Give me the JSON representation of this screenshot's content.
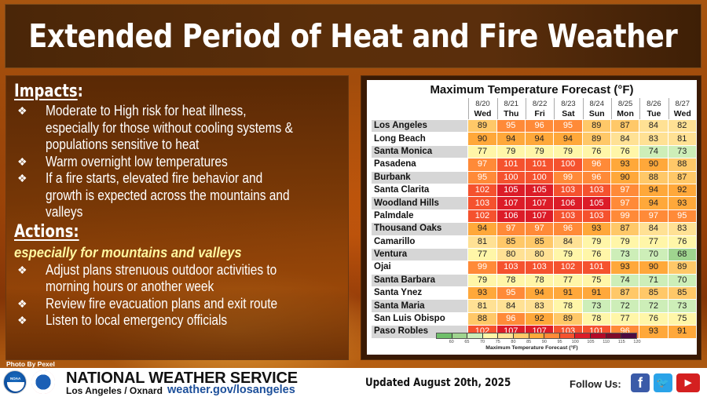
{
  "header": {
    "title": "Extended Period of Heat and Fire Weather"
  },
  "impacts": {
    "heading": "Impacts",
    "heading_suffix": ":",
    "bullet_icon": "❖",
    "items": [
      "Moderate to High risk for heat illness, especially for those without cooling systems & populations sensitive to heat",
      "Warm overnight low temperatures",
      "If a fire starts, elevated fire behavior and growth is expected across the mountains and valleys"
    ]
  },
  "actions": {
    "heading": "Actions:",
    "subheading": "especially for mountains and valleys",
    "bullet_icon": "❖",
    "items": [
      "Adjust plans strenuous outdoor activities to morning hours or another week",
      "Review fire evacuation plans and exit route",
      "Listen to local emergency officials"
    ]
  },
  "photo_credit": "Photo By Pexel",
  "chart_data": {
    "type": "table",
    "title": "Maximum Temperature Forecast (°F)",
    "columns": [
      {
        "date": "8/20",
        "day": "Wed"
      },
      {
        "date": "8/21",
        "day": "Thu"
      },
      {
        "date": "8/22",
        "day": "Fri"
      },
      {
        "date": "8/23",
        "day": "Sat"
      },
      {
        "date": "8/24",
        "day": "Sun"
      },
      {
        "date": "8/25",
        "day": "Mon"
      },
      {
        "date": "8/26",
        "day": "Tue"
      },
      {
        "date": "8/27",
        "day": "Wed"
      }
    ],
    "rows": [
      {
        "city": "Los Angeles",
        "values": [
          89,
          95,
          96,
          95,
          89,
          87,
          84,
          82
        ]
      },
      {
        "city": "Long Beach",
        "values": [
          90,
          94,
          94,
          94,
          89,
          84,
          83,
          81
        ]
      },
      {
        "city": "Santa Monica",
        "values": [
          77,
          79,
          79,
          79,
          76,
          76,
          74,
          73
        ]
      },
      {
        "city": "Pasadena",
        "values": [
          97,
          101,
          101,
          100,
          96,
          93,
          90,
          88
        ]
      },
      {
        "city": "Burbank",
        "values": [
          95,
          100,
          100,
          99,
          96,
          90,
          88,
          87
        ]
      },
      {
        "city": "Santa Clarita",
        "values": [
          102,
          105,
          105,
          103,
          103,
          97,
          94,
          92
        ]
      },
      {
        "city": "Woodland Hills",
        "values": [
          103,
          107,
          107,
          106,
          105,
          97,
          94,
          93
        ]
      },
      {
        "city": "Palmdale",
        "values": [
          102,
          106,
          107,
          103,
          103,
          99,
          97,
          95
        ]
      },
      {
        "city": "Thousand Oaks",
        "values": [
          94,
          97,
          97,
          96,
          93,
          87,
          84,
          83
        ]
      },
      {
        "city": "Camarillo",
        "values": [
          81,
          85,
          85,
          84,
          79,
          79,
          77,
          76
        ]
      },
      {
        "city": "Ventura",
        "values": [
          77,
          80,
          80,
          79,
          76,
          73,
          70,
          68
        ]
      },
      {
        "city": "Ojai",
        "values": [
          99,
          103,
          103,
          102,
          101,
          93,
          90,
          89
        ]
      },
      {
        "city": "Santa Barbara",
        "values": [
          79,
          78,
          78,
          77,
          75,
          74,
          71,
          70
        ]
      },
      {
        "city": "Santa Ynez",
        "values": [
          93,
          95,
          94,
          91,
          91,
          87,
          85,
          85
        ]
      },
      {
        "city": "Santa Maria",
        "values": [
          81,
          84,
          83,
          78,
          73,
          72,
          72,
          73
        ]
      },
      {
        "city": "San Luis Obispo",
        "values": [
          88,
          96,
          92,
          89,
          78,
          77,
          76,
          75
        ]
      },
      {
        "city": "Paso Robles",
        "values": [
          102,
          107,
          107,
          103,
          101,
          96,
          93,
          91
        ]
      }
    ],
    "color_scale": {
      "label": "Maximum Temperature Forecast (°F)",
      "ticks": [
        60,
        65,
        70,
        75,
        80,
        85,
        90,
        95,
        100,
        105,
        110,
        115,
        120
      ],
      "colors": [
        "#6fbf6a",
        "#9fd48f",
        "#cdeeb8",
        "#fff6a8",
        "#ffe194",
        "#ffc868",
        "#ffa83a",
        "#ff8a38",
        "#f5522e",
        "#dc1c28",
        "#b40a28",
        "#7e0a2a",
        "#4c0a40"
      ]
    }
  },
  "footer": {
    "org_name": "NATIONAL WEATHER SERVICE",
    "office": "Los Angeles / Oxnard",
    "url": "weather.gov/losangeles",
    "noaa_label": "NOAA",
    "updated": "Updated August 20th, 2025",
    "follow_label": "Follow Us:",
    "social": [
      {
        "name": "facebook",
        "glyph": "f"
      },
      {
        "name": "twitter",
        "glyph": "🐦"
      },
      {
        "name": "youtube",
        "glyph": "▶"
      }
    ]
  }
}
